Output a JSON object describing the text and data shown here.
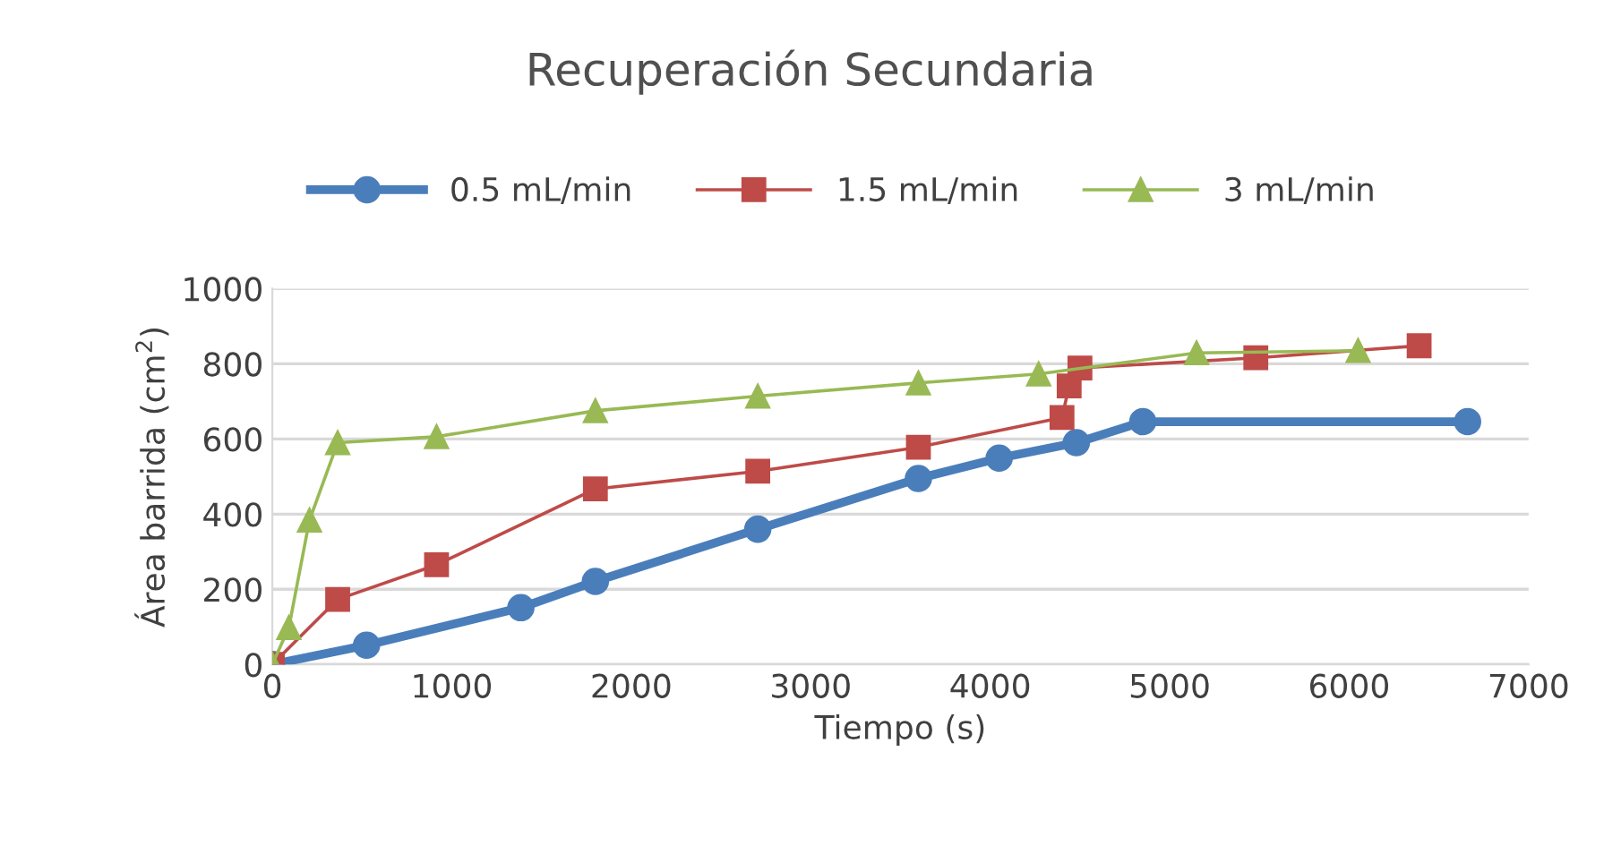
{
  "chart_data": {
    "type": "line",
    "title": "Recuperación Secundaria",
    "xlabel": "Tiempo (s)",
    "ylabel": "Área barrida (cm$^{2}$)",
    "xlim": [
      0,
      7000
    ],
    "xticks": [
      0,
      1000,
      2000,
      3000,
      4000,
      5000,
      6000,
      7000
    ],
    "ylim": [
      0,
      1000
    ],
    "yticks": [
      0,
      200,
      400,
      600,
      800,
      1000
    ],
    "grid": "y",
    "legend": "top",
    "series": [
      {
        "name": "0.5 mL/min",
        "color": "#4a7ebb",
        "marker": "circle",
        "x": [
          0,
          525,
          1385,
          1800,
          2705,
          3600,
          4050,
          4480,
          4850,
          6660
        ],
        "values": [
          0,
          51,
          151,
          221,
          360,
          495,
          549,
          590,
          646,
          646
        ]
      },
      {
        "name": "1.5 mL/min",
        "color": "#be4b48",
        "marker": "square",
        "x": [
          0,
          364,
          915,
          1800,
          2705,
          3600,
          4400,
          4440,
          4500,
          5480,
          6390
        ],
        "values": [
          0,
          173,
          265,
          467,
          514,
          578,
          657,
          741,
          789,
          816,
          848
        ]
      },
      {
        "name": "3 mL/min",
        "color": "#98b954",
        "marker": "triangle",
        "x": [
          0,
          92,
          207,
          364,
          915,
          1800,
          2705,
          3600,
          4270,
          5150,
          6050
        ],
        "values": [
          0,
          98,
          384,
          590,
          606,
          675,
          714,
          749,
          773,
          829,
          835
        ]
      }
    ]
  }
}
